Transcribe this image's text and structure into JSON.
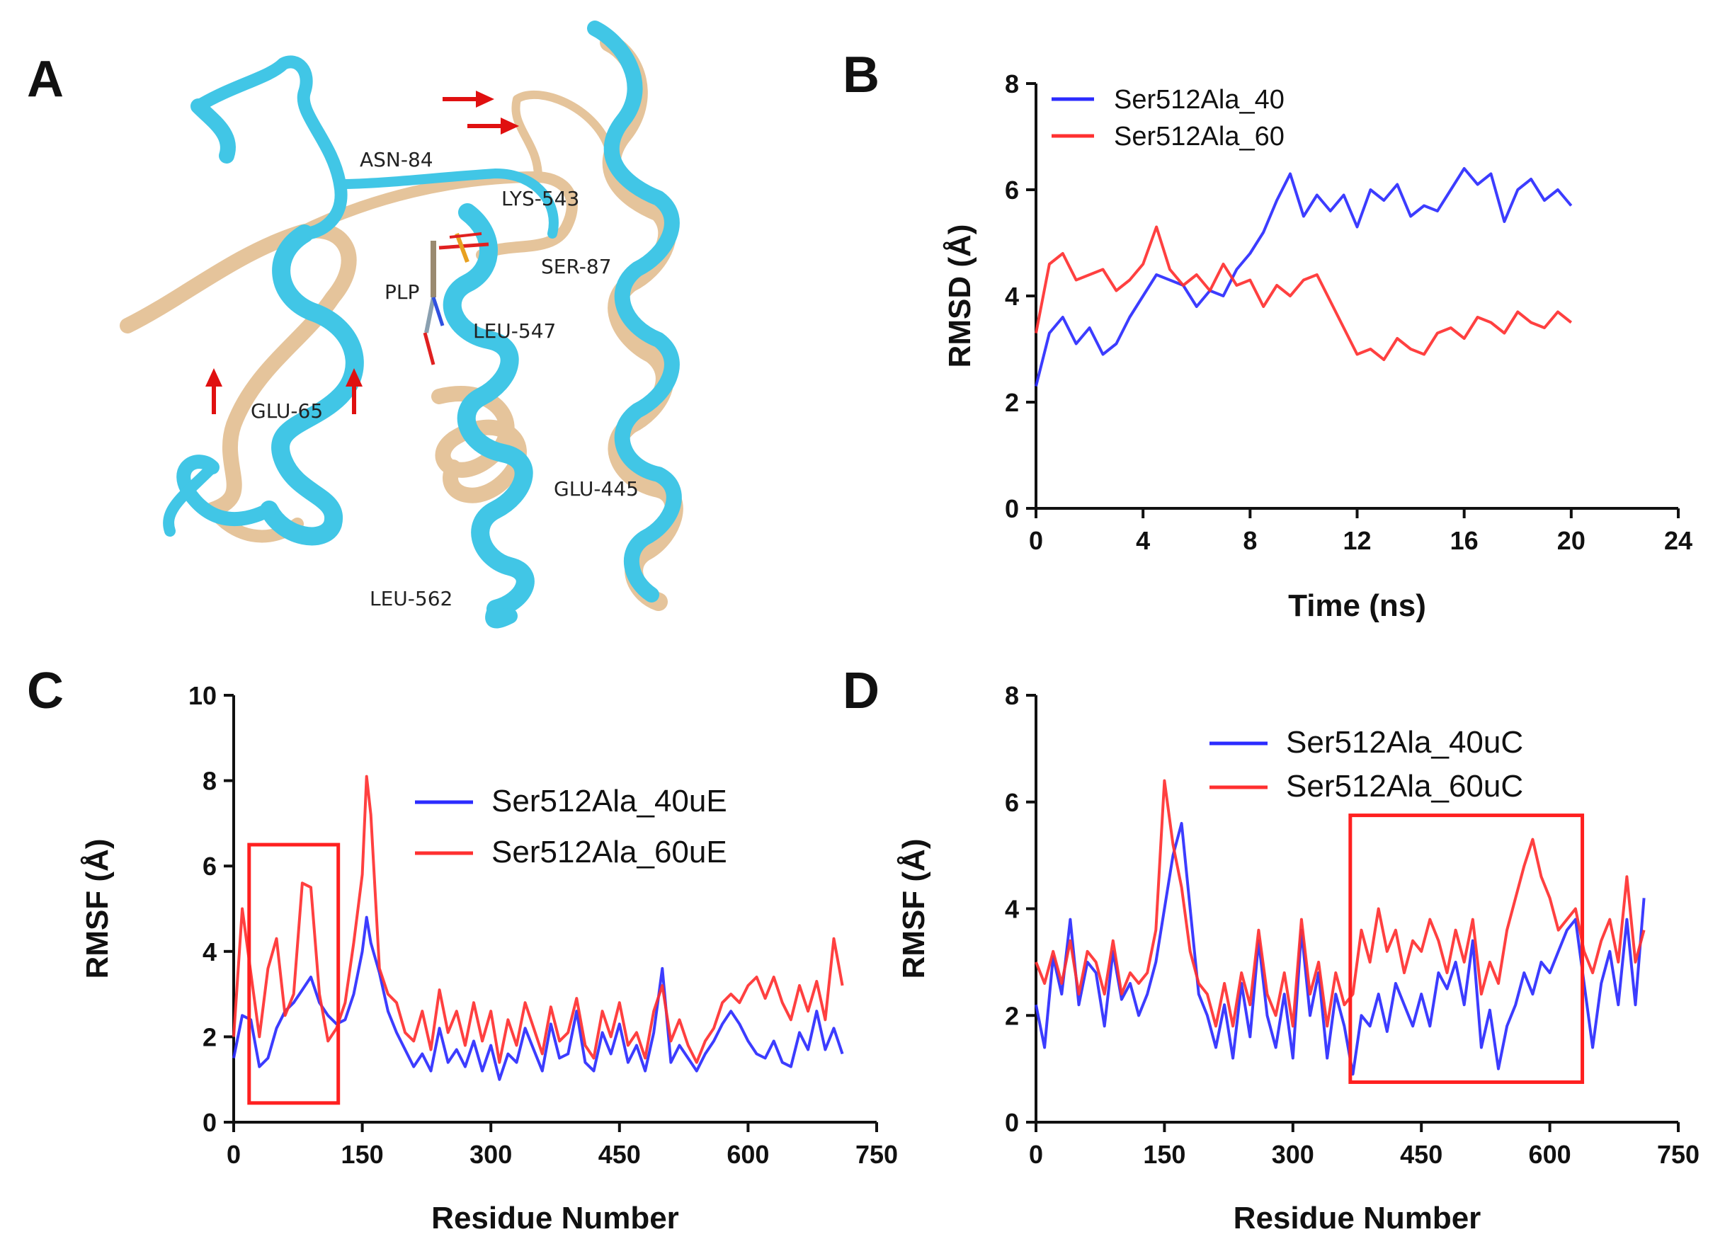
{
  "panel_labels": [
    "A",
    "B",
    "C",
    "D"
  ],
  "structure": {
    "description_labels": [
      "ASN-84",
      "LYS-543",
      "SER-87",
      "PLP",
      "LEU-547",
      "GLU-65",
      "GLU-445",
      "LEU-562"
    ],
    "colors": {
      "ribbon_a": "#41c6e6",
      "ribbon_b": "#e5c49b",
      "arrow": "#e01010"
    }
  },
  "chart_data": [
    {
      "panel": "B",
      "type": "line",
      "title": "",
      "xlabel": "Time (ns)",
      "ylabel": "RMSD (Å)",
      "xlim": [
        0,
        24
      ],
      "ylim": [
        0,
        8
      ],
      "xticks": [
        0,
        4,
        8,
        12,
        16,
        20,
        24
      ],
      "yticks": [
        0,
        2,
        4,
        6,
        8
      ],
      "legend_position": "top-left",
      "series": [
        {
          "name": "Ser512Ala_40",
          "color": "#2b2bff",
          "x": [
            0,
            0.5,
            1,
            1.5,
            2,
            2.5,
            3,
            3.5,
            4,
            4.5,
            5,
            5.5,
            6,
            6.5,
            7,
            7.5,
            8,
            8.5,
            9,
            9.5,
            10,
            10.5,
            11,
            11.5,
            12,
            12.5,
            13,
            13.5,
            14,
            14.5,
            15,
            15.5,
            16,
            16.5,
            17,
            17.5,
            18,
            18.5,
            19,
            19.5,
            20
          ],
          "y": [
            2.3,
            3.3,
            3.6,
            3.1,
            3.4,
            2.9,
            3.1,
            3.6,
            4.0,
            4.4,
            4.3,
            4.2,
            3.8,
            4.1,
            4.0,
            4.5,
            4.8,
            5.2,
            5.8,
            6.3,
            5.5,
            5.9,
            5.6,
            5.9,
            5.3,
            6.0,
            5.8,
            6.1,
            5.5,
            5.7,
            5.6,
            6.0,
            6.4,
            6.1,
            6.3,
            5.4,
            6.0,
            6.2,
            5.8,
            6.0,
            5.7
          ]
        },
        {
          "name": "Ser512Ala_60",
          "color": "#ff3030",
          "x": [
            0,
            0.5,
            1,
            1.5,
            2,
            2.5,
            3,
            3.5,
            4,
            4.5,
            5,
            5.5,
            6,
            6.5,
            7,
            7.5,
            8,
            8.5,
            9,
            9.5,
            10,
            10.5,
            11,
            11.5,
            12,
            12.5,
            13,
            13.5,
            14,
            14.5,
            15,
            15.5,
            16,
            16.5,
            17,
            17.5,
            18,
            18.5,
            19,
            19.5,
            20
          ],
          "y": [
            3.3,
            4.6,
            4.8,
            4.3,
            4.4,
            4.5,
            4.1,
            4.3,
            4.6,
            5.3,
            4.5,
            4.2,
            4.4,
            4.1,
            4.6,
            4.2,
            4.3,
            3.8,
            4.2,
            4.0,
            4.3,
            4.4,
            3.9,
            3.4,
            2.9,
            3.0,
            2.8,
            3.2,
            3.0,
            2.9,
            3.3,
            3.4,
            3.2,
            3.6,
            3.5,
            3.3,
            3.7,
            3.5,
            3.4,
            3.7,
            3.5
          ]
        }
      ]
    },
    {
      "panel": "C",
      "type": "line",
      "title": "",
      "xlabel": "Residue Number",
      "ylabel": "RMSF  (Å)",
      "xlim": [
        0,
        750
      ],
      "ylim": [
        0,
        10
      ],
      "xticks": [
        0,
        150,
        300,
        450,
        600,
        750
      ],
      "yticks": [
        0,
        2,
        4,
        6,
        8,
        10
      ],
      "legend_position": "middle",
      "highlight_box": {
        "x": [
          18,
          122
        ],
        "y": [
          0.45,
          6.5
        ]
      },
      "series": [
        {
          "name": "Ser512Ala_40uE",
          "color": "#2b2bff",
          "x": [
            0,
            10,
            20,
            30,
            40,
            50,
            60,
            70,
            80,
            90,
            100,
            110,
            120,
            130,
            140,
            150,
            155,
            160,
            170,
            180,
            190,
            200,
            210,
            220,
            230,
            240,
            250,
            260,
            270,
            280,
            290,
            300,
            310,
            320,
            330,
            340,
            350,
            360,
            370,
            380,
            390,
            400,
            410,
            420,
            430,
            440,
            450,
            460,
            470,
            480,
            490,
            500,
            510,
            520,
            530,
            540,
            550,
            560,
            570,
            580,
            590,
            600,
            610,
            620,
            630,
            640,
            650,
            660,
            670,
            680,
            690,
            700,
            710
          ],
          "y": [
            1.5,
            2.5,
            2.4,
            1.3,
            1.5,
            2.2,
            2.6,
            2.8,
            3.1,
            3.4,
            2.8,
            2.5,
            2.3,
            2.4,
            3.0,
            4.0,
            4.8,
            4.2,
            3.5,
            2.6,
            2.1,
            1.7,
            1.3,
            1.6,
            1.2,
            2.2,
            1.4,
            1.7,
            1.3,
            1.9,
            1.2,
            1.8,
            1.0,
            1.6,
            1.4,
            2.2,
            1.7,
            1.2,
            2.3,
            1.5,
            1.6,
            2.6,
            1.4,
            1.2,
            2.1,
            1.6,
            2.3,
            1.4,
            1.8,
            1.2,
            2.1,
            3.6,
            1.4,
            1.8,
            1.5,
            1.2,
            1.6,
            1.9,
            2.3,
            2.6,
            2.3,
            1.9,
            1.6,
            1.5,
            1.9,
            1.4,
            1.3,
            2.1,
            1.7,
            2.6,
            1.7,
            2.2,
            1.6
          ]
        },
        {
          "name": "Ser512Ala_60uE",
          "color": "#ff3030",
          "x": [
            0,
            10,
            20,
            30,
            40,
            50,
            60,
            70,
            80,
            90,
            100,
            110,
            120,
            130,
            140,
            150,
            155,
            160,
            170,
            180,
            190,
            200,
            210,
            220,
            230,
            240,
            250,
            260,
            270,
            280,
            290,
            300,
            310,
            320,
            330,
            340,
            350,
            360,
            370,
            380,
            390,
            400,
            410,
            420,
            430,
            440,
            450,
            460,
            470,
            480,
            490,
            500,
            510,
            520,
            530,
            540,
            550,
            560,
            570,
            580,
            590,
            600,
            610,
            620,
            630,
            640,
            650,
            660,
            670,
            680,
            690,
            700,
            710
          ],
          "y": [
            2.0,
            5.0,
            3.5,
            2.0,
            3.6,
            4.3,
            2.5,
            3.0,
            5.6,
            5.5,
            3.0,
            1.9,
            2.2,
            2.8,
            4.2,
            5.8,
            8.1,
            7.2,
            3.6,
            3.0,
            2.8,
            2.1,
            1.9,
            2.6,
            1.7,
            3.1,
            2.1,
            2.6,
            1.8,
            2.8,
            1.9,
            2.6,
            1.4,
            2.4,
            1.8,
            2.8,
            2.2,
            1.6,
            2.7,
            1.9,
            2.1,
            2.9,
            1.8,
            1.5,
            2.6,
            2.0,
            2.8,
            1.8,
            2.1,
            1.5,
            2.6,
            3.2,
            1.9,
            2.4,
            1.8,
            1.4,
            1.9,
            2.2,
            2.8,
            3.0,
            2.8,
            3.2,
            3.4,
            2.9,
            3.4,
            2.8,
            2.4,
            3.2,
            2.6,
            3.3,
            2.4,
            4.3,
            3.2
          ]
        }
      ]
    },
    {
      "panel": "D",
      "type": "line",
      "title": "",
      "xlabel": "Residue Number",
      "ylabel": "RMSF  (Å)",
      "xlim": [
        0,
        750
      ],
      "ylim": [
        0,
        8
      ],
      "xticks": [
        0,
        150,
        300,
        450,
        600,
        750
      ],
      "yticks": [
        0,
        2,
        4,
        6,
        8
      ],
      "legend_position": "top-center",
      "highlight_box": {
        "x": [
          367,
          638
        ],
        "y": [
          0.75,
          5.75
        ]
      },
      "series": [
        {
          "name": "Ser512Ala_40uC",
          "color": "#2b2bff",
          "x": [
            0,
            10,
            20,
            30,
            40,
            50,
            60,
            70,
            80,
            90,
            100,
            110,
            120,
            130,
            140,
            150,
            160,
            170,
            180,
            190,
            200,
            210,
            220,
            230,
            240,
            250,
            260,
            270,
            280,
            290,
            300,
            310,
            320,
            330,
            340,
            350,
            360,
            370,
            380,
            390,
            400,
            410,
            420,
            430,
            440,
            450,
            460,
            470,
            480,
            490,
            500,
            510,
            520,
            530,
            540,
            550,
            560,
            570,
            580,
            590,
            600,
            610,
            620,
            630,
            640,
            650,
            660,
            670,
            680,
            690,
            700,
            710
          ],
          "y": [
            2.2,
            1.4,
            3.1,
            2.4,
            3.8,
            2.2,
            3.0,
            2.8,
            1.8,
            3.2,
            2.3,
            2.6,
            2.0,
            2.4,
            3.0,
            4.0,
            5.0,
            5.6,
            4.0,
            2.4,
            2.0,
            1.4,
            2.2,
            1.2,
            2.6,
            1.6,
            3.4,
            2.0,
            1.4,
            2.4,
            1.2,
            3.6,
            2.0,
            2.8,
            1.2,
            2.4,
            1.8,
            0.9,
            2.0,
            1.8,
            2.4,
            1.7,
            2.6,
            2.2,
            1.8,
            2.4,
            1.8,
            2.8,
            2.5,
            3.0,
            2.2,
            3.4,
            1.4,
            2.1,
            1.0,
            1.8,
            2.2,
            2.8,
            2.4,
            3.0,
            2.8,
            3.2,
            3.6,
            3.8,
            2.6,
            1.4,
            2.6,
            3.2,
            2.2,
            3.8,
            2.2,
            4.2
          ]
        },
        {
          "name": "Ser512Ala_60uC",
          "color": "#ff3030",
          "x": [
            0,
            10,
            20,
            30,
            40,
            50,
            60,
            70,
            80,
            90,
            100,
            110,
            120,
            130,
            140,
            150,
            160,
            170,
            180,
            190,
            200,
            210,
            220,
            230,
            240,
            250,
            260,
            270,
            280,
            290,
            300,
            310,
            320,
            330,
            340,
            350,
            360,
            370,
            380,
            390,
            400,
            410,
            420,
            430,
            440,
            450,
            460,
            470,
            480,
            490,
            500,
            510,
            520,
            530,
            540,
            550,
            560,
            570,
            580,
            590,
            600,
            610,
            620,
            630,
            640,
            650,
            660,
            670,
            680,
            690,
            700,
            710
          ],
          "y": [
            3.0,
            2.6,
            3.2,
            2.6,
            3.4,
            2.4,
            3.2,
            3.0,
            2.4,
            3.4,
            2.4,
            2.8,
            2.6,
            2.8,
            3.6,
            6.4,
            5.2,
            4.4,
            3.2,
            2.6,
            2.4,
            1.8,
            2.6,
            1.8,
            2.8,
            2.2,
            3.6,
            2.4,
            2.0,
            2.8,
            1.8,
            3.8,
            2.4,
            3.0,
            1.8,
            2.8,
            2.2,
            2.4,
            3.6,
            3.0,
            4.0,
            3.2,
            3.6,
            2.8,
            3.4,
            3.2,
            3.8,
            3.4,
            2.8,
            3.6,
            3.0,
            3.8,
            2.4,
            3.0,
            2.6,
            3.6,
            4.2,
            4.8,
            5.3,
            4.6,
            4.2,
            3.6,
            3.8,
            4.0,
            3.2,
            2.8,
            3.4,
            3.8,
            3.0,
            4.6,
            3.0,
            3.6
          ]
        }
      ]
    }
  ]
}
